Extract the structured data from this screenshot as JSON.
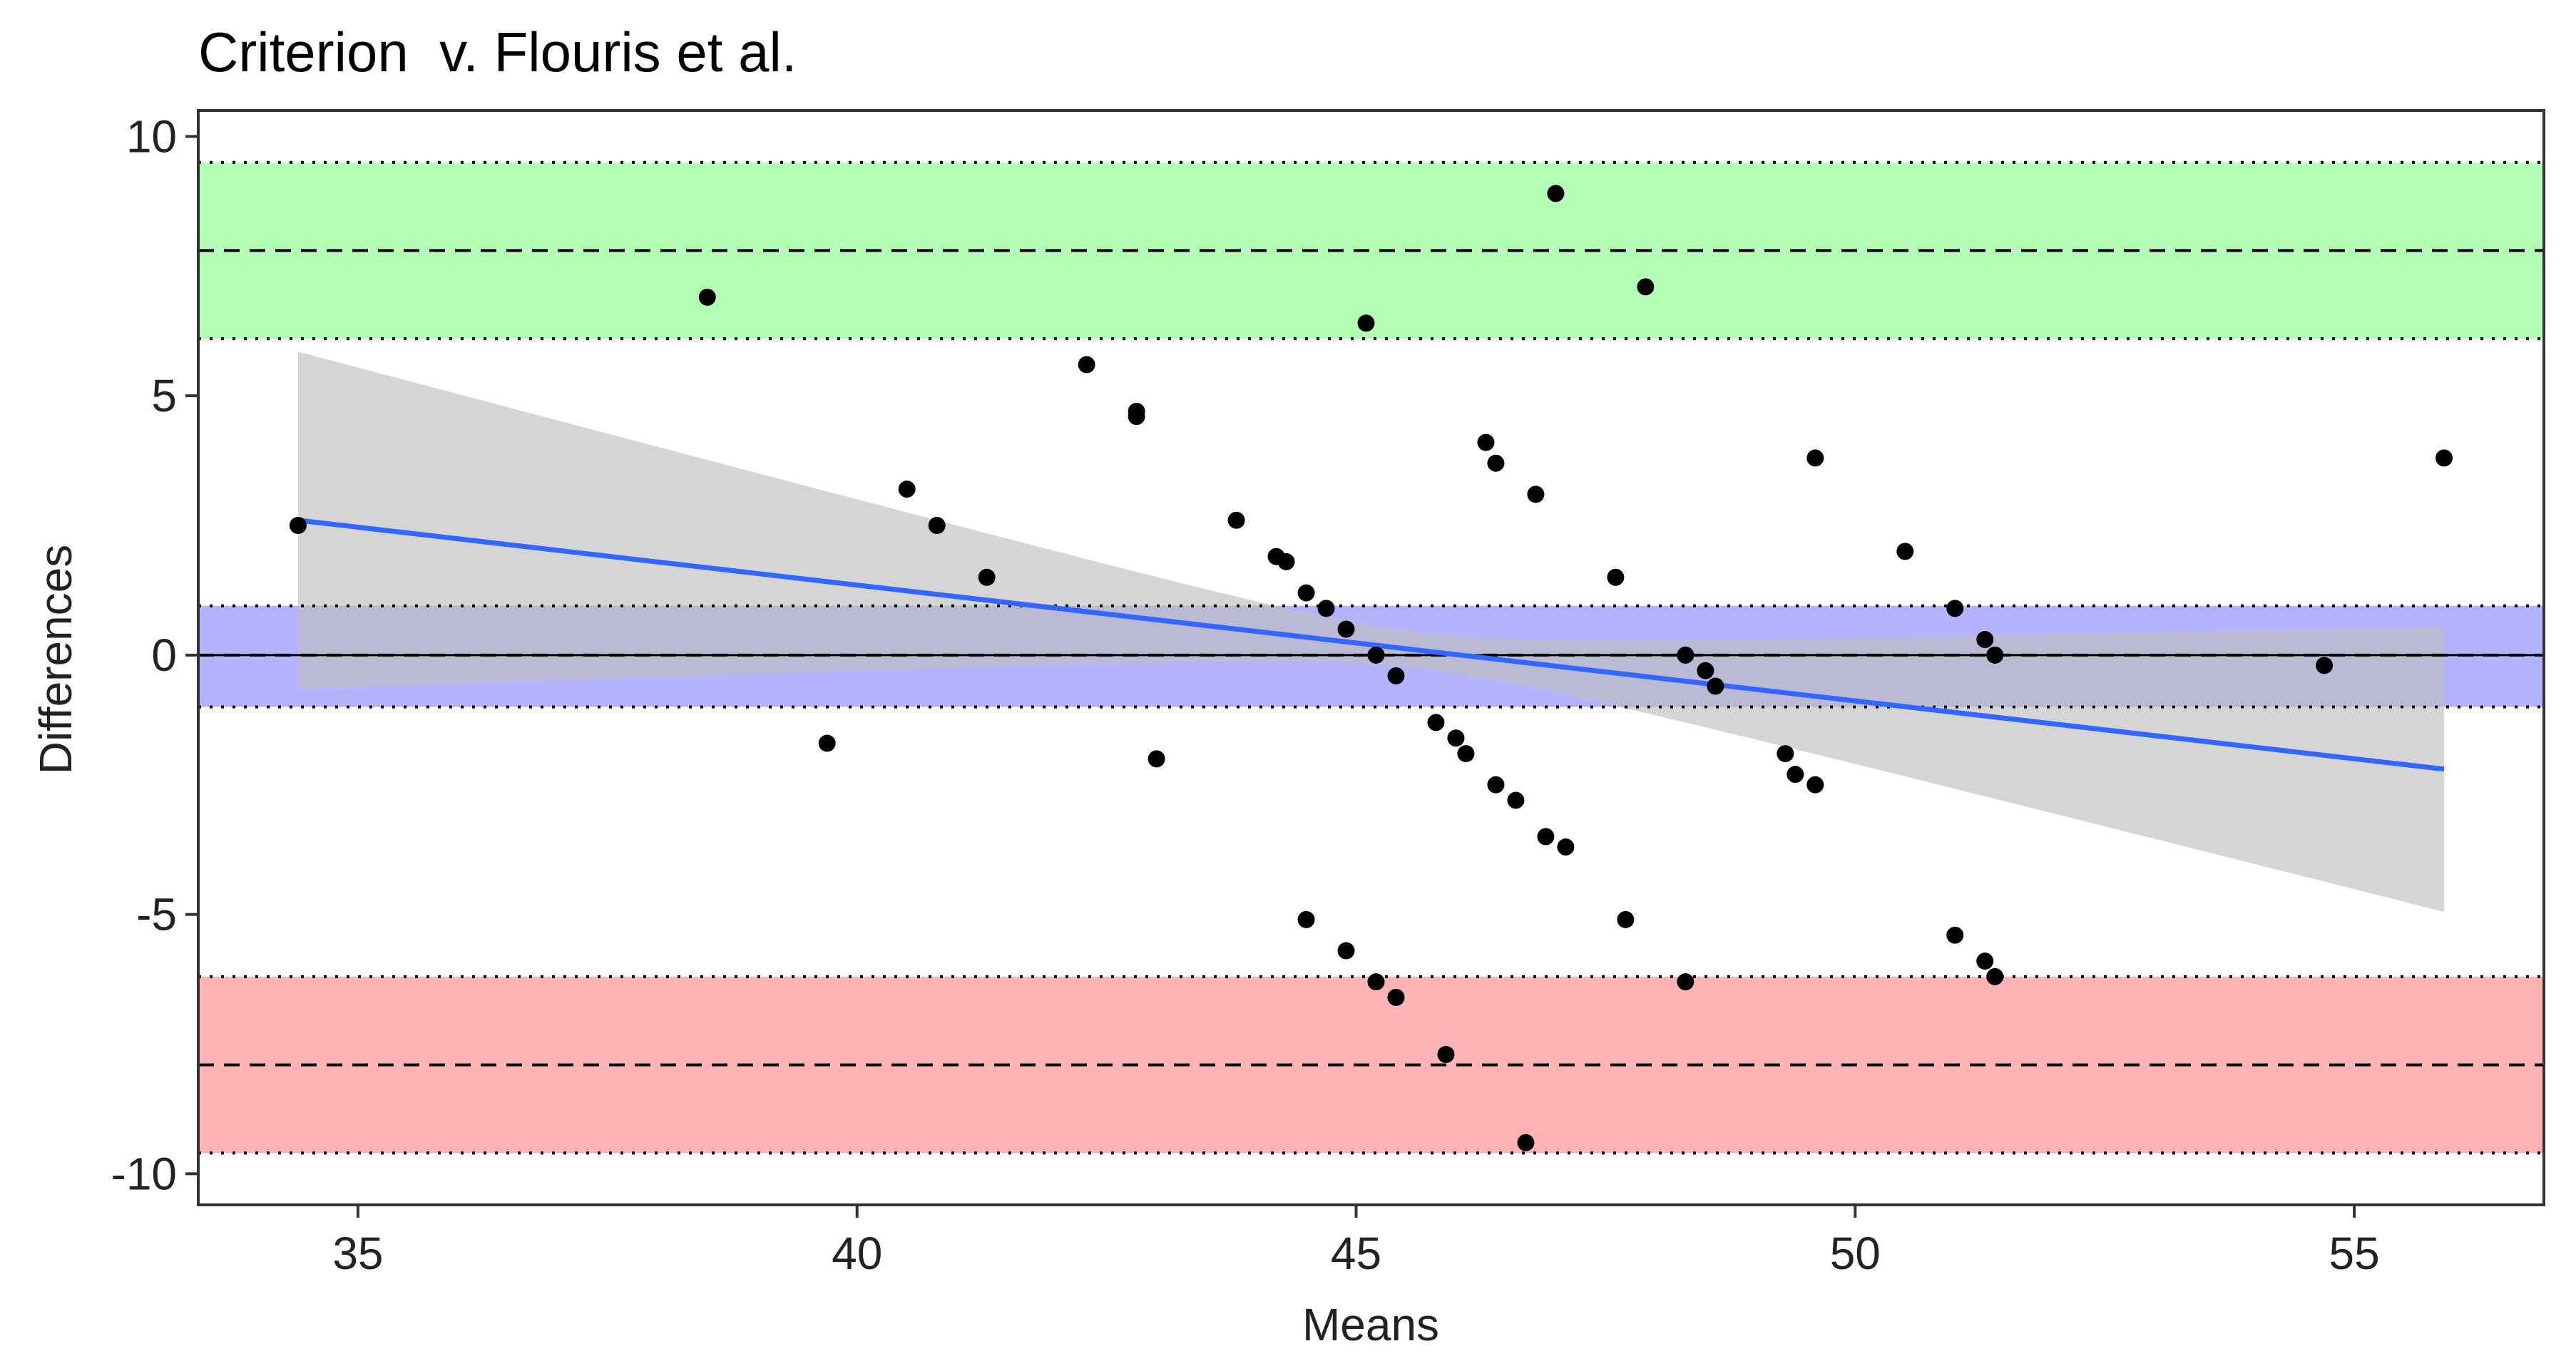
{
  "chart_data": {
    "type": "scatter",
    "title": "Criterion  v. Flouris et al.",
    "xlabel": "Means",
    "ylabel": "Differences",
    "xlim": [
      33.4,
      56.9
    ],
    "ylim": [
      -10.6,
      10.5
    ],
    "x_ticks": [
      35,
      40,
      45,
      50,
      55
    ],
    "y_ticks": [
      10,
      5,
      0,
      -5,
      -10
    ],
    "grid": false,
    "colors": {
      "upper_band": "#b3ffb3",
      "mean_band": "#b3b3ff",
      "lower_band": "#ffb3b3",
      "confidence_band": "#bebebe",
      "regression_line": "#3366ff",
      "points": "#000000"
    },
    "bands": {
      "upper_limit": {
        "center": 7.8,
        "lower": 6.1,
        "upper": 9.5
      },
      "mean_difference": {
        "center": 0.0,
        "lower": -1.0,
        "upper": 0.95
      },
      "lower_limit": {
        "center": -7.9,
        "lower": -9.6,
        "upper": -6.2
      }
    },
    "zero_line": 0,
    "regression": {
      "x_start": 34.4,
      "y_start": 2.6,
      "x_end": 55.9,
      "y_end": -2.2,
      "ci_upper_start": 5.9,
      "ci_upper_end": 0.6,
      "ci_lower_start": -0.6,
      "ci_lower_end": -4.9,
      "ci_x_min": 45.6,
      "ci_half_min": 0.35
    },
    "points": [
      {
        "x": 34.4,
        "y": 2.5
      },
      {
        "x": 38.5,
        "y": 6.9
      },
      {
        "x": 39.7,
        "y": -1.7
      },
      {
        "x": 40.5,
        "y": 3.2
      },
      {
        "x": 40.8,
        "y": 2.5
      },
      {
        "x": 41.3,
        "y": 1.5
      },
      {
        "x": 42.3,
        "y": 5.6
      },
      {
        "x": 42.8,
        "y": 4.6
      },
      {
        "x": 42.8,
        "y": 4.7
      },
      {
        "x": 43.0,
        "y": -2.0
      },
      {
        "x": 43.8,
        "y": 2.6
      },
      {
        "x": 44.2,
        "y": 1.9
      },
      {
        "x": 44.3,
        "y": 1.8
      },
      {
        "x": 44.5,
        "y": 1.2
      },
      {
        "x": 44.5,
        "y": -5.1
      },
      {
        "x": 44.7,
        "y": 0.9
      },
      {
        "x": 44.9,
        "y": 0.5
      },
      {
        "x": 44.9,
        "y": -5.7
      },
      {
        "x": 45.1,
        "y": 6.4
      },
      {
        "x": 45.2,
        "y": 0.0
      },
      {
        "x": 45.2,
        "y": -6.3
      },
      {
        "x": 45.4,
        "y": -6.6
      },
      {
        "x": 45.4,
        "y": -0.4
      },
      {
        "x": 45.8,
        "y": -1.3
      },
      {
        "x": 45.9,
        "y": -7.7
      },
      {
        "x": 46.0,
        "y": -1.6
      },
      {
        "x": 46.1,
        "y": -1.9
      },
      {
        "x": 46.3,
        "y": 4.1
      },
      {
        "x": 46.4,
        "y": 3.7
      },
      {
        "x": 46.4,
        "y": -2.5
      },
      {
        "x": 46.6,
        "y": -2.8
      },
      {
        "x": 46.7,
        "y": -9.4
      },
      {
        "x": 46.8,
        "y": 3.1
      },
      {
        "x": 46.9,
        "y": -3.5
      },
      {
        "x": 47.0,
        "y": 8.9
      },
      {
        "x": 47.1,
        "y": -3.7
      },
      {
        "x": 47.6,
        "y": 1.5
      },
      {
        "x": 47.7,
        "y": -5.1
      },
      {
        "x": 47.9,
        "y": 7.1
      },
      {
        "x": 48.3,
        "y": 0.0
      },
      {
        "x": 48.3,
        "y": -6.3
      },
      {
        "x": 48.5,
        "y": -0.3
      },
      {
        "x": 48.6,
        "y": -0.6
      },
      {
        "x": 49.3,
        "y": -1.9
      },
      {
        "x": 49.4,
        "y": -2.3
      },
      {
        "x": 49.6,
        "y": 3.8
      },
      {
        "x": 49.6,
        "y": -2.5
      },
      {
        "x": 50.5,
        "y": 2.0
      },
      {
        "x": 51.0,
        "y": 0.9
      },
      {
        "x": 51.0,
        "y": -5.4
      },
      {
        "x": 51.3,
        "y": 0.3
      },
      {
        "x": 51.3,
        "y": -5.9
      },
      {
        "x": 51.4,
        "y": 0.0
      },
      {
        "x": 51.4,
        "y": -6.2
      },
      {
        "x": 54.7,
        "y": -0.2
      },
      {
        "x": 55.9,
        "y": 3.8
      }
    ]
  }
}
